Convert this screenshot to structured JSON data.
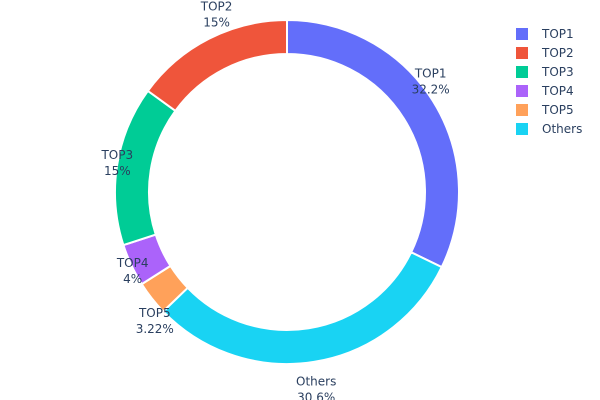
{
  "chart_data": {
    "type": "pie",
    "hole": true,
    "direction": "clockwise",
    "slices": [
      {
        "label": "TOP1",
        "value": 32.2,
        "text": "32.2%",
        "color": "#636efa"
      },
      {
        "label": "Others",
        "value": 30.6,
        "text": "30.6%",
        "color": "#19d3f3"
      },
      {
        "label": "TOP5",
        "value": 3.22,
        "text": "3.22%",
        "color": "#FFA15A"
      },
      {
        "label": "TOP4",
        "value": 4,
        "text": "4%",
        "color": "#ab63fa"
      },
      {
        "label": "TOP3",
        "value": 15,
        "text": "15%",
        "color": "#00cc96"
      },
      {
        "label": "TOP2",
        "value": 15,
        "text": "15%",
        "color": "#EF553B"
      }
    ],
    "legend": {
      "placement": "top-right",
      "entries": [
        {
          "label": "TOP1",
          "color": "#636efa"
        },
        {
          "label": "TOP2",
          "color": "#EF553B"
        },
        {
          "label": "TOP3",
          "color": "#00cc96"
        },
        {
          "label": "TOP4",
          "color": "#ab63fa"
        },
        {
          "label": "TOP5",
          "color": "#FFA15A"
        },
        {
          "label": "Others",
          "color": "#19d3f3"
        }
      ]
    }
  }
}
